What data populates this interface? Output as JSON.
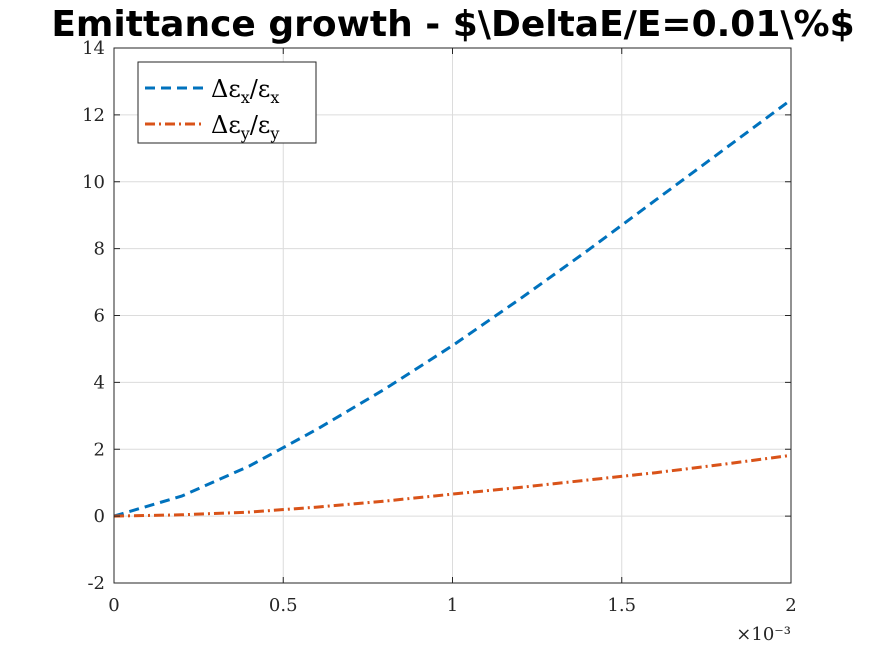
{
  "chart_data": {
    "type": "line",
    "title": "Emittance growth - $\\DeltaE/E=0.01\\%$",
    "xlabel": "",
    "ylabel": "",
    "xlim": [
      0,
      0.002
    ],
    "ylim": [
      -2,
      14
    ],
    "x_ticks": [
      0,
      0.0005,
      0.001,
      0.0015,
      0.002
    ],
    "x_tick_labels": [
      "0",
      "0.5",
      "1",
      "1.5",
      "2"
    ],
    "x_exponent_label": "×10⁻³",
    "y_ticks": [
      -2,
      0,
      2,
      4,
      6,
      8,
      10,
      12,
      14
    ],
    "y_tick_labels": [
      "-2",
      "0",
      "2",
      "4",
      "6",
      "8",
      "10",
      "12",
      "14"
    ],
    "grid": true,
    "legend_position": "top-left",
    "series": [
      {
        "name": "Δε_x/ε_x",
        "color": "#0072BD",
        "style": "dashed",
        "x": [
          0,
          0.0002,
          0.0004,
          0.0006,
          0.0008,
          0.001,
          0.0012,
          0.0014,
          0.0016,
          0.0018,
          0.002
        ],
        "values": [
          0,
          0.6,
          1.5,
          2.6,
          3.8,
          5.1,
          6.5,
          7.95,
          9.45,
          10.95,
          12.45
        ]
      },
      {
        "name": "Δε_y/ε_y",
        "color": "#D95319",
        "style": "dash-dot",
        "x": [
          0,
          0.0002,
          0.0004,
          0.0006,
          0.0008,
          0.001,
          0.0012,
          0.0014,
          0.0016,
          0.0018,
          0.002
        ],
        "values": [
          0,
          0.04,
          0.12,
          0.27,
          0.45,
          0.66,
          0.86,
          1.08,
          1.3,
          1.55,
          1.82
        ]
      }
    ]
  },
  "legend": {
    "entries": [
      {
        "label": "Δε",
        "sub": "x",
        "over": "ε",
        "sub2": "x"
      },
      {
        "label": "Δε",
        "sub": "y",
        "over": "ε",
        "sub2": "y"
      }
    ]
  }
}
